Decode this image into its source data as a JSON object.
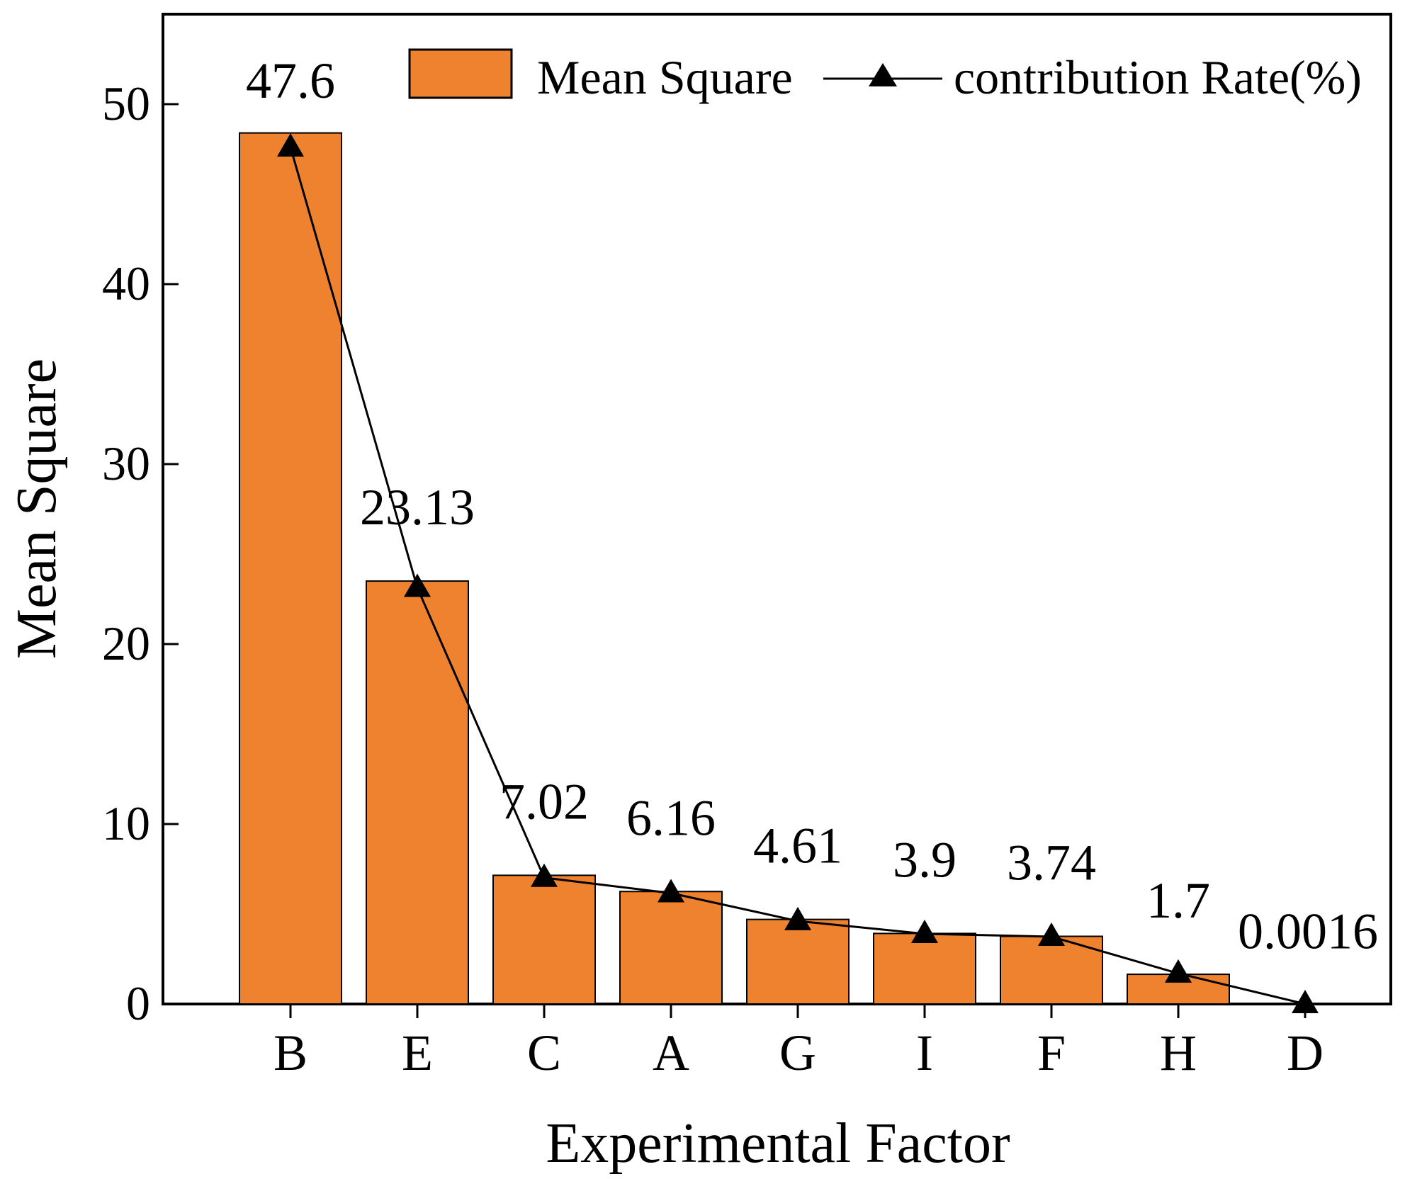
{
  "chart_data": {
    "type": "bar",
    "title": "",
    "xlabel": "Experimental Factor",
    "ylabel": "Mean Square",
    "categories": [
      "B",
      "E",
      "C",
      "A",
      "G",
      "I",
      "F",
      "H",
      "D"
    ],
    "series": [
      {
        "name": "Mean Square",
        "kind": "bar",
        "color": "#EE822F",
        "values": [
          48.4,
          23.5,
          7.15,
          6.25,
          4.7,
          3.92,
          3.76,
          1.65,
          0.02
        ]
      },
      {
        "name": "contribution Rate(%)",
        "kind": "line",
        "marker": "triangle",
        "color": "#000000",
        "values": [
          47.6,
          23.13,
          7.02,
          6.16,
          4.61,
          3.9,
          3.74,
          1.7,
          0.0016
        ]
      }
    ],
    "data_labels": [
      "47.6",
      "23.13",
      "7.02",
      "6.16",
      "4.61",
      "3.9",
      "3.74",
      "1.7",
      "0.0016"
    ],
    "ylim": [
      0,
      55
    ],
    "yticks": [
      0,
      10,
      20,
      30,
      40,
      50
    ],
    "legend_position": "top-right",
    "grid": false
  }
}
